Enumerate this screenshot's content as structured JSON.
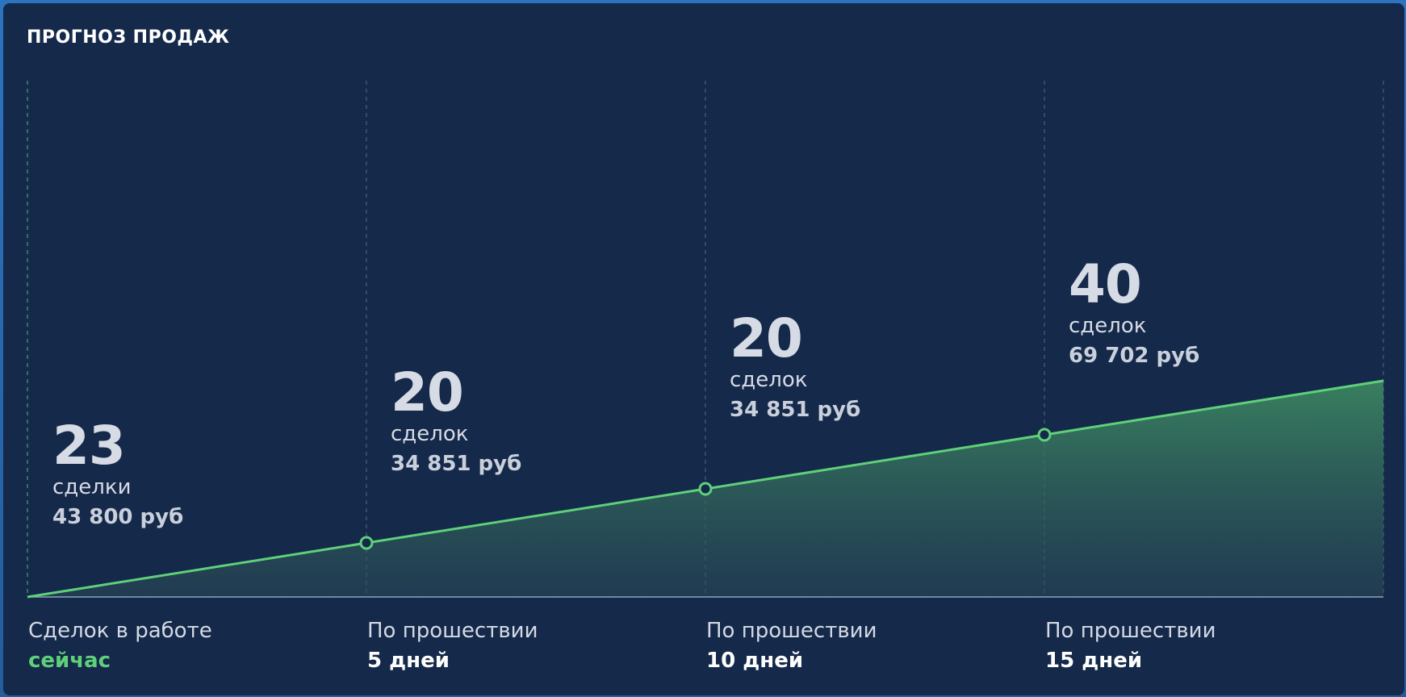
{
  "panel": {
    "title": "ПРОГНОЗ ПРОДАЖ"
  },
  "colors": {
    "background": "#15294a",
    "line": "#5fd07a",
    "accent": "#5fd07a",
    "gridline": "#4b6078"
  },
  "chart_data": {
    "type": "area",
    "title": "ПРОГНОЗ ПРОДАЖ",
    "grid": "vertical dashed",
    "x": [
      "сейчас",
      "5 дней",
      "10 дней",
      "15 дней",
      ""
    ],
    "y": [
      0,
      1,
      2,
      3,
      4
    ],
    "points": [
      {
        "value": "23",
        "unit": "сделки",
        "sum": "43 800 руб",
        "label_top": "Сделок в работе",
        "label_bottom": "сейчас"
      },
      {
        "value": "20",
        "unit": "сделок",
        "sum": "34 851 руб",
        "label_top": "По прошествии",
        "label_bottom": "5 дней"
      },
      {
        "value": "20",
        "unit": "сделок",
        "sum": "34 851 руб",
        "label_top": "По прошествии",
        "label_bottom": "10 дней"
      },
      {
        "value": "40",
        "unit": "сделок",
        "sum": "69 702 руб",
        "label_top": "По прошествии",
        "label_bottom": "15 дней"
      }
    ],
    "markers_at": [
      1,
      2,
      3
    ]
  }
}
